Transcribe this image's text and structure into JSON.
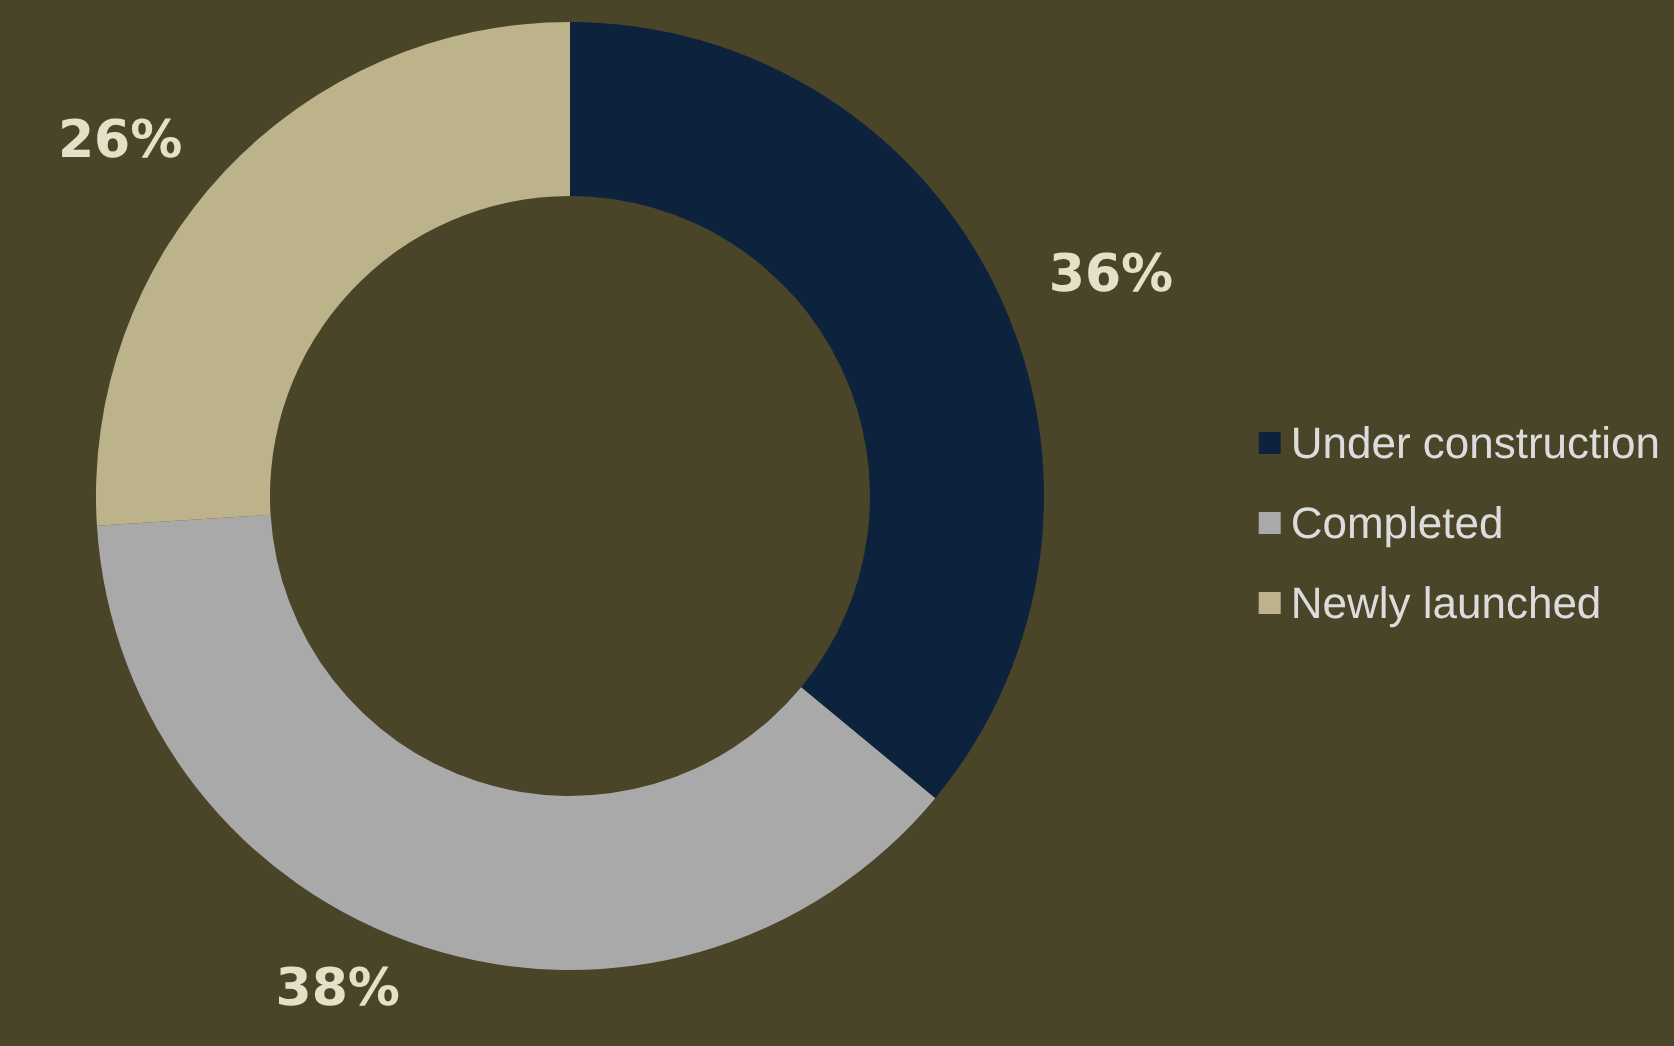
{
  "chart_data": {
    "type": "donut",
    "categories": [
      "Under construction",
      "Completed",
      "Newly launched"
    ],
    "values": [
      36,
      38,
      26
    ],
    "colors": [
      "#0d233d",
      "#a9a9a9",
      "#bdb38a"
    ],
    "legend": "right",
    "value_labels": [
      "36%",
      "38%",
      "26%"
    ]
  }
}
